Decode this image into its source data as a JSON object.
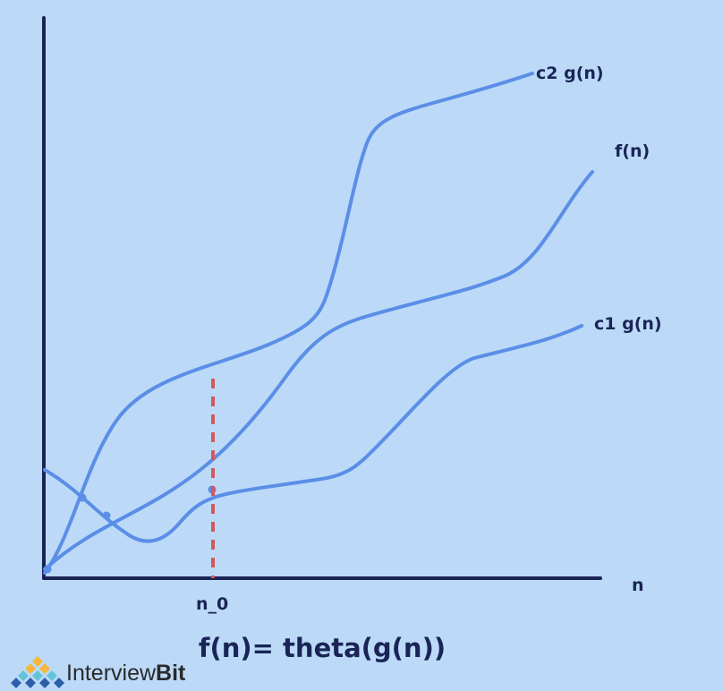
{
  "curves": {
    "upper_label": "c2 g(n)",
    "middle_label": "f(n)",
    "lower_label": "c1 g(n)"
  },
  "axes": {
    "x_label": "n",
    "threshold_label": "n_0"
  },
  "caption": "f(n)= theta(g(n))",
  "brand": {
    "name_part1": "Interview",
    "name_part2": "Bit",
    "logo_colors": [
      "#f6b73c",
      "#62c3d9",
      "#2d5fa8"
    ]
  },
  "colors": {
    "background": "#bcdaf8",
    "curve": "#5b8ee6",
    "axis": "#1a2456",
    "threshold": "#d4585c"
  }
}
